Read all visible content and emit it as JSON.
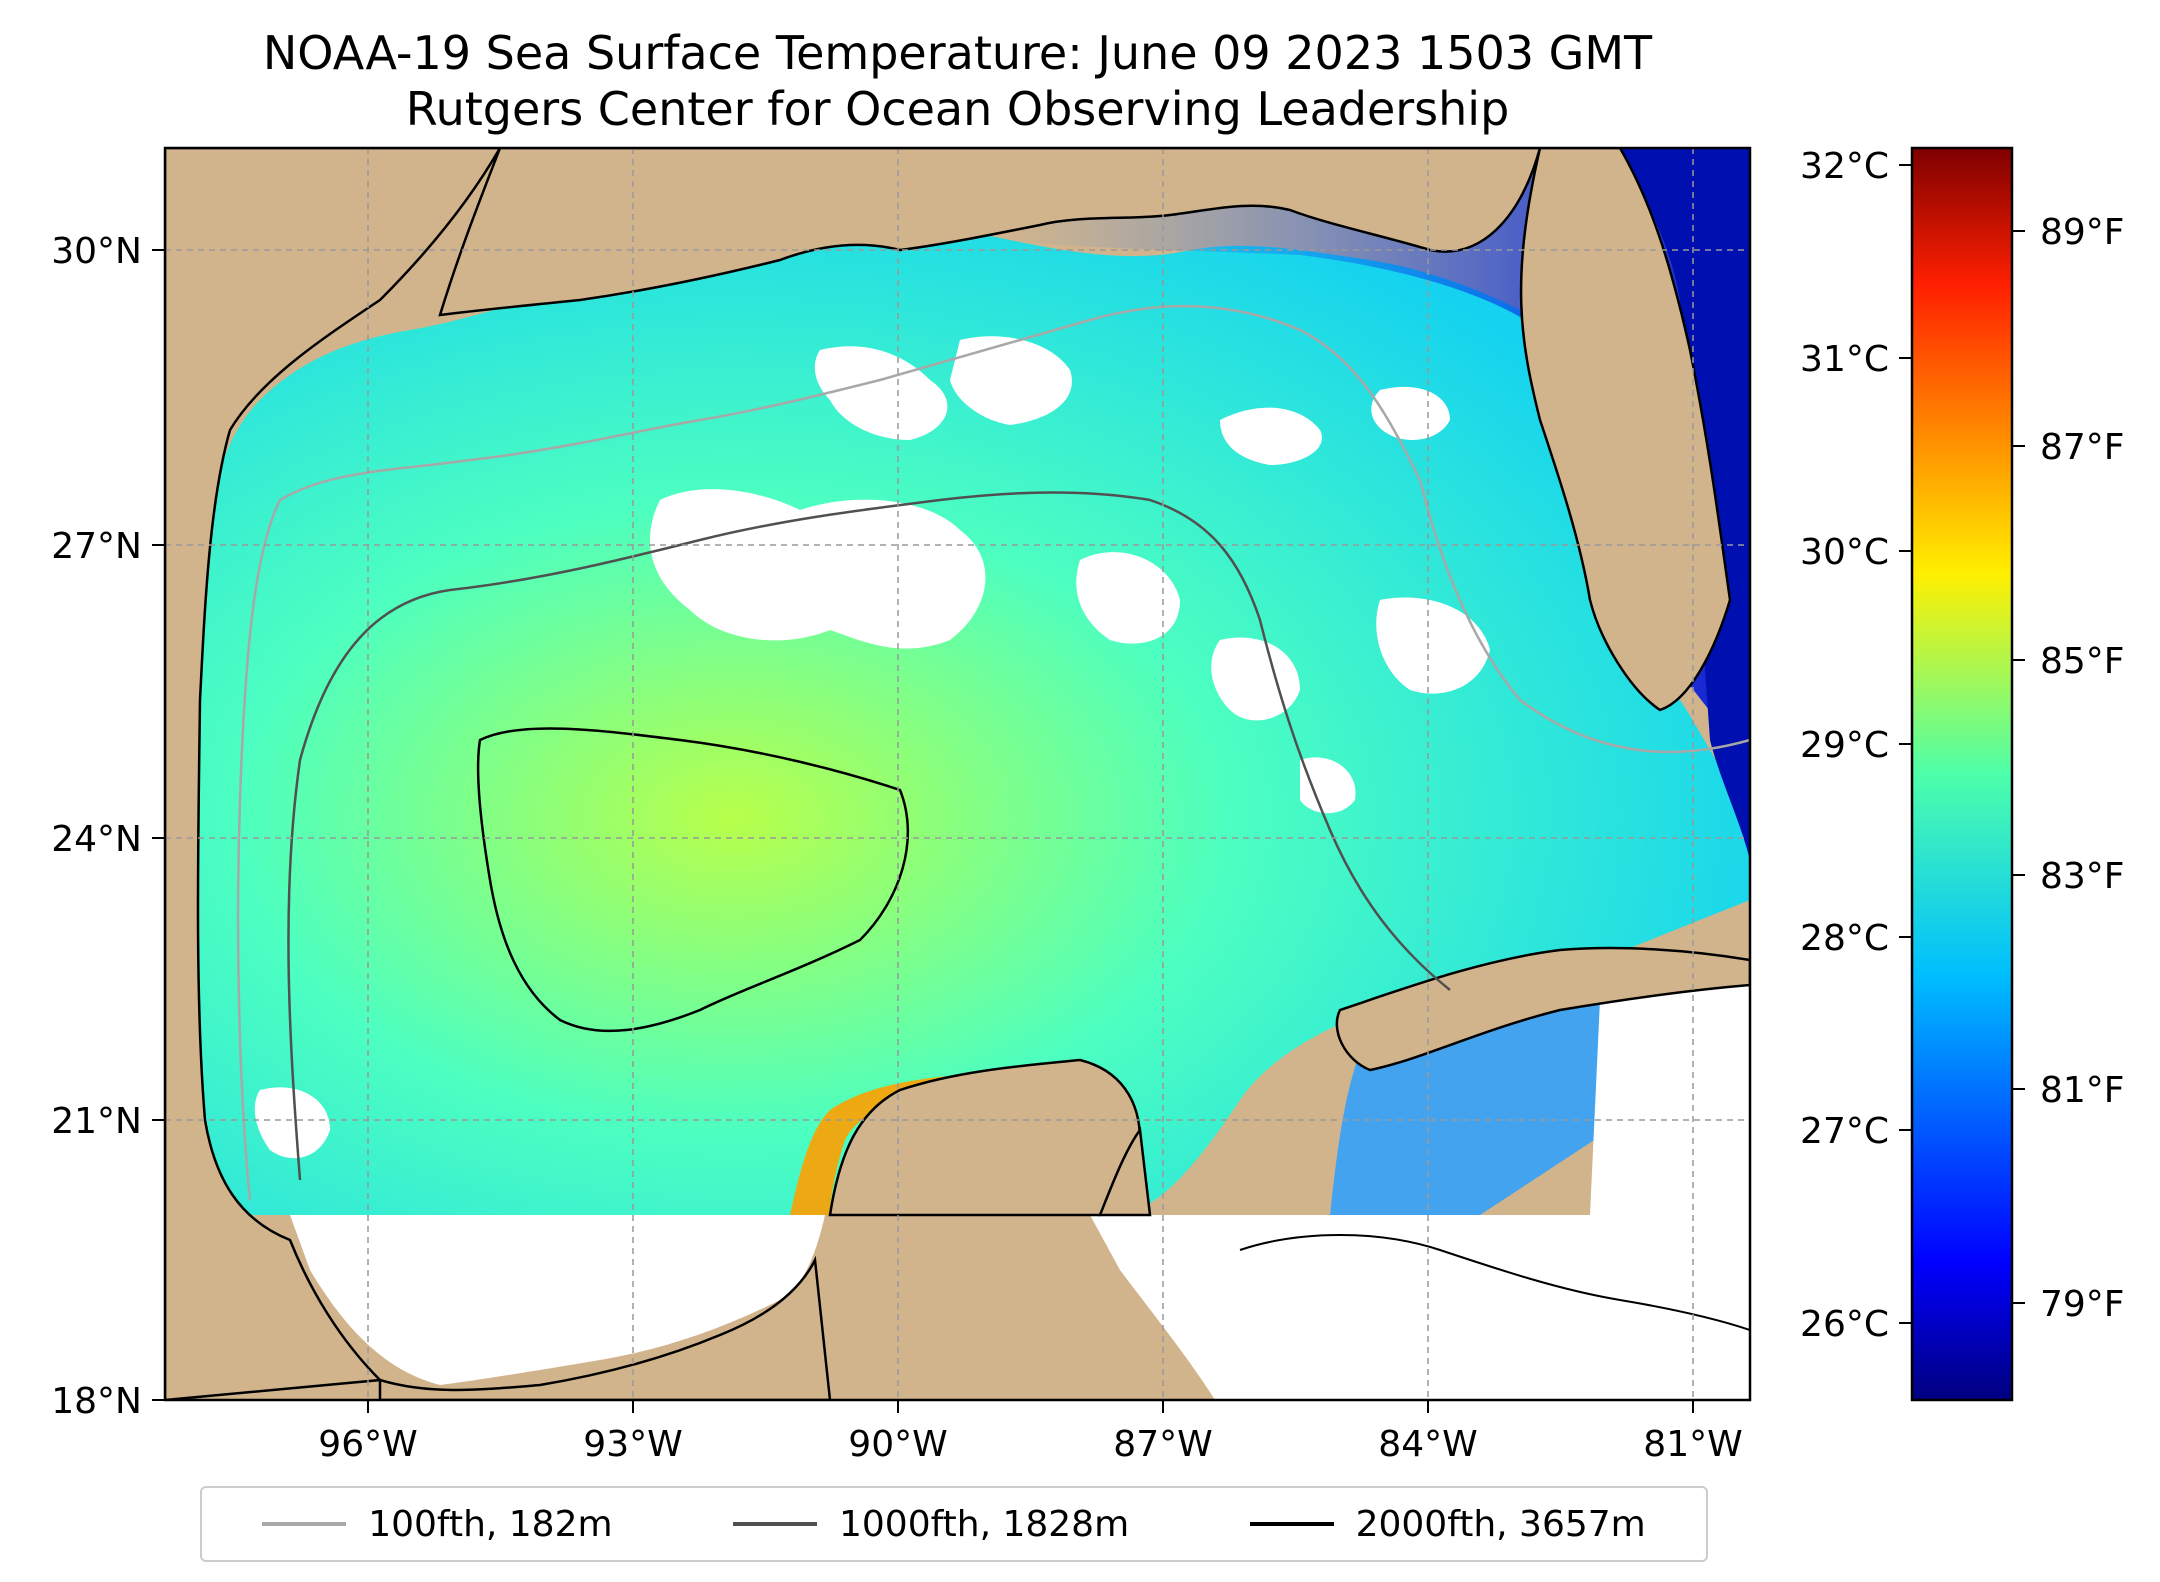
{
  "title_line1": "NOAA-19 Sea Surface Temperature: June 09 2023 1503 GMT",
  "title_line2": "Rutgers Center for Ocean Observing Leadership",
  "map": {
    "lat_ticks": [
      "30°N",
      "27°N",
      "24°N",
      "21°N",
      "18°N"
    ],
    "lon_ticks": [
      "96°W",
      "93°W",
      "90°W",
      "87°W",
      "84°W",
      "81°W"
    ],
    "lat_range": [
      18,
      31
    ],
    "lon_range": [
      -98.2,
      -80.6
    ],
    "land_color": "#d2b48c",
    "nodata_color": "#ffffff"
  },
  "colorbar": {
    "celsius_ticks": [
      "32°C",
      "31°C",
      "30°C",
      "29°C",
      "28°C",
      "27°C",
      "26°C"
    ],
    "fahrenheit_ticks": [
      "89°F",
      "87°F",
      "85°F",
      "83°F",
      "81°F",
      "79°F"
    ],
    "range_c": [
      25.6,
      32.1
    ],
    "colormap": "jet"
  },
  "legend": [
    {
      "label": "100fth, 182m",
      "color": "#a8a8a8"
    },
    {
      "label": "1000fth, 1828m",
      "color": "#505050"
    },
    {
      "label": "2000fth, 3657m",
      "color": "#000000"
    }
  ]
}
